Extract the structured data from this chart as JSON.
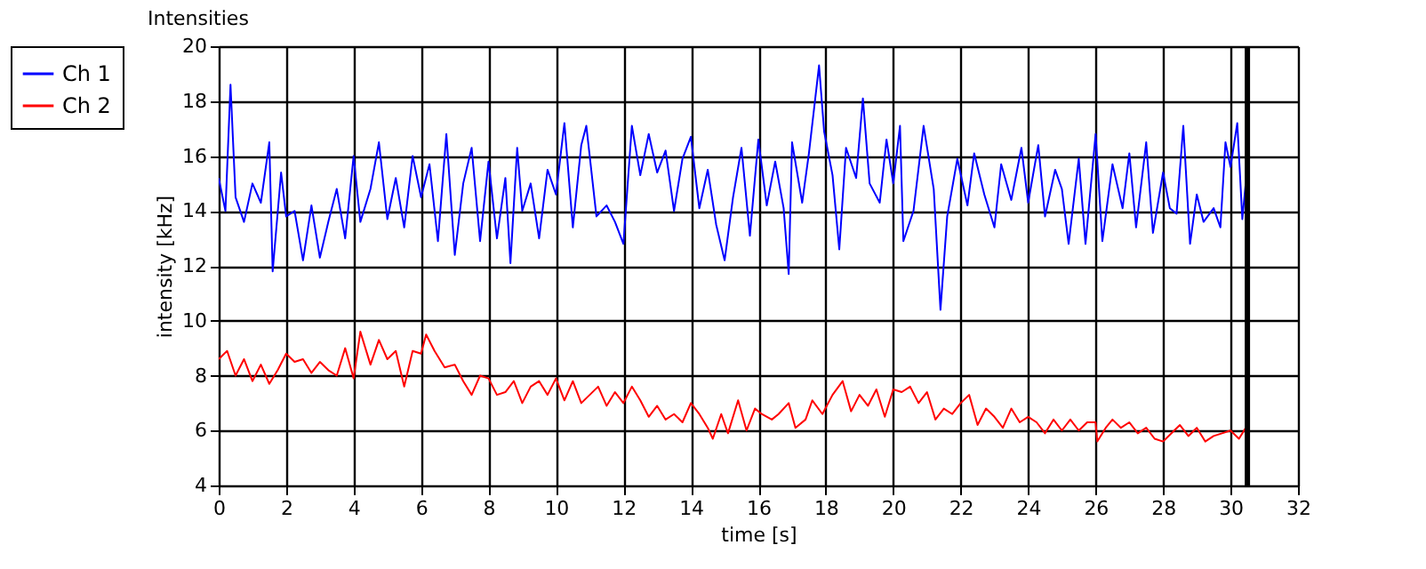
{
  "chart_data": {
    "type": "line",
    "title": "Intensities",
    "xlabel": "time [s]",
    "ylabel": "intensity [kHz]",
    "xlim": [
      0,
      32
    ],
    "xticks": [
      0,
      2,
      4,
      6,
      8,
      10,
      12,
      14,
      16,
      18,
      20,
      22,
      24,
      26,
      28,
      30,
      32
    ],
    "ylim": [
      4,
      20
    ],
    "yticks": [
      4,
      6,
      8,
      10,
      12,
      14,
      16,
      18,
      20
    ],
    "grid": true,
    "legend": "top left",
    "line_style": "solid",
    "marker": "none",
    "ref_lines": [
      {
        "axis": "x",
        "value": 30.5,
        "label": null,
        "color": "#000000"
      }
    ],
    "series": [
      {
        "name": "Ch 1",
        "color": "#0000ff",
        "x": [
          0.0,
          0.2,
          0.35,
          0.5,
          0.75,
          1.0,
          1.25,
          1.5,
          1.6,
          1.85,
          2.0,
          2.25,
          2.5,
          2.75,
          3.0,
          3.25,
          3.5,
          3.75,
          4.0,
          4.2,
          4.5,
          4.75,
          5.0,
          5.25,
          5.5,
          5.75,
          6.0,
          6.25,
          6.5,
          6.75,
          7.0,
          7.25,
          7.5,
          7.75,
          8.0,
          8.25,
          8.5,
          8.65,
          8.85,
          9.0,
          9.25,
          9.5,
          9.75,
          10.0,
          10.25,
          10.5,
          10.75,
          10.9,
          11.2,
          11.5,
          11.75,
          12.0,
          12.25,
          12.5,
          12.75,
          13.0,
          13.25,
          13.5,
          13.75,
          14.0,
          14.25,
          14.5,
          14.75,
          15.0,
          15.25,
          15.5,
          15.75,
          16.0,
          16.25,
          16.5,
          16.75,
          16.9,
          17.0,
          17.3,
          17.5,
          17.8,
          17.95,
          18.2,
          18.4,
          18.6,
          18.9,
          19.1,
          19.3,
          19.6,
          19.8,
          20.0,
          20.2,
          20.3,
          20.6,
          20.9,
          21.2,
          21.4,
          21.6,
          21.9,
          22.2,
          22.4,
          22.7,
          23.0,
          23.2,
          23.5,
          23.8,
          24.0,
          24.3,
          24.5,
          24.8,
          25.0,
          25.2,
          25.5,
          25.7,
          26.0,
          26.2,
          26.5,
          26.8,
          27.0,
          27.2,
          27.5,
          27.7,
          28.0,
          28.2,
          28.4,
          28.6,
          28.8,
          29.0,
          29.2,
          29.5,
          29.7,
          29.85,
          30.0,
          30.2,
          30.35,
          30.45
        ],
        "values": [
          15.2,
          14.0,
          18.6,
          14.5,
          13.6,
          15.0,
          14.3,
          16.5,
          11.8,
          15.4,
          13.8,
          14.0,
          12.2,
          14.2,
          12.3,
          13.6,
          14.8,
          13.0,
          16.0,
          13.6,
          14.8,
          16.5,
          13.7,
          15.2,
          13.4,
          16.0,
          14.5,
          15.7,
          12.9,
          16.8,
          12.4,
          15.0,
          16.3,
          12.9,
          15.8,
          13.0,
          15.2,
          12.1,
          16.3,
          14.0,
          15.0,
          13.0,
          15.5,
          14.6,
          17.2,
          13.4,
          16.4,
          17.1,
          13.8,
          14.2,
          13.6,
          12.8,
          17.1,
          15.3,
          16.8,
          15.4,
          16.2,
          14.0,
          15.9,
          16.7,
          14.1,
          15.5,
          13.5,
          12.2,
          14.5,
          16.3,
          13.1,
          16.6,
          14.2,
          15.8,
          14.1,
          11.7,
          16.5,
          14.3,
          16.1,
          19.3,
          16.9,
          15.3,
          12.6,
          16.3,
          15.2,
          18.1,
          15.0,
          14.3,
          16.6,
          15.0,
          17.1,
          12.9,
          14.0,
          17.1,
          14.8,
          10.4,
          13.8,
          15.9,
          14.2,
          16.1,
          14.6,
          13.4,
          15.7,
          14.4,
          16.3,
          14.3,
          16.4,
          13.8,
          15.5,
          14.8,
          12.8,
          15.9,
          12.8,
          16.8,
          12.9,
          15.7,
          14.1,
          16.1,
          13.4,
          16.5,
          13.2,
          15.4,
          14.1,
          13.9,
          17.1,
          12.8,
          14.6,
          13.6,
          14.1,
          13.4,
          16.5,
          15.6,
          17.2,
          13.7,
          15.0
        ]
      },
      {
        "name": "Ch 2",
        "color": "#ff0000",
        "x": [
          0.0,
          0.25,
          0.5,
          0.75,
          1.0,
          1.25,
          1.5,
          1.75,
          2.0,
          2.25,
          2.5,
          2.75,
          3.0,
          3.25,
          3.5,
          3.75,
          4.0,
          4.2,
          4.5,
          4.75,
          5.0,
          5.25,
          5.5,
          5.75,
          6.0,
          6.15,
          6.4,
          6.7,
          7.0,
          7.25,
          7.5,
          7.75,
          8.0,
          8.25,
          8.5,
          8.75,
          9.0,
          9.25,
          9.5,
          9.75,
          10.0,
          10.25,
          10.5,
          10.75,
          11.0,
          11.25,
          11.5,
          11.75,
          12.0,
          12.25,
          12.5,
          12.75,
          13.0,
          13.25,
          13.5,
          13.75,
          14.0,
          14.25,
          14.5,
          14.65,
          14.9,
          15.1,
          15.4,
          15.65,
          15.9,
          16.1,
          16.4,
          16.6,
          16.9,
          17.1,
          17.4,
          17.6,
          17.9,
          18.2,
          18.5,
          18.75,
          19.0,
          19.25,
          19.5,
          19.75,
          20.0,
          20.25,
          20.5,
          20.75,
          21.0,
          21.25,
          21.5,
          21.75,
          22.0,
          22.25,
          22.5,
          22.75,
          23.0,
          23.25,
          23.5,
          23.75,
          24.0,
          24.25,
          24.5,
          24.75,
          25.0,
          25.25,
          25.5,
          25.75,
          26.0,
          26.05,
          26.3,
          26.5,
          26.75,
          27.0,
          27.25,
          27.5,
          27.75,
          28.0,
          28.25,
          28.5,
          28.75,
          29.0,
          29.25,
          29.5,
          29.75,
          30.0,
          30.25,
          30.45
        ],
        "values": [
          8.6,
          8.9,
          8.0,
          8.6,
          7.8,
          8.4,
          7.7,
          8.2,
          8.8,
          8.5,
          8.6,
          8.1,
          8.5,
          8.2,
          8.0,
          9.0,
          7.9,
          9.6,
          8.4,
          9.3,
          8.6,
          8.9,
          7.6,
          8.9,
          8.8,
          9.5,
          8.9,
          8.3,
          8.4,
          7.8,
          7.3,
          8.0,
          7.9,
          7.3,
          7.4,
          7.8,
          7.0,
          7.6,
          7.8,
          7.3,
          7.9,
          7.1,
          7.8,
          7.0,
          7.3,
          7.6,
          6.9,
          7.4,
          7.0,
          7.6,
          7.1,
          6.5,
          6.9,
          6.4,
          6.6,
          6.3,
          7.0,
          6.6,
          6.1,
          5.7,
          6.6,
          5.9,
          7.1,
          6.0,
          6.8,
          6.6,
          6.4,
          6.6,
          7.0,
          6.1,
          6.4,
          7.1,
          6.6,
          7.3,
          7.8,
          6.7,
          7.3,
          6.9,
          7.5,
          6.5,
          7.5,
          7.4,
          7.6,
          7.0,
          7.4,
          6.4,
          6.8,
          6.6,
          7.0,
          7.3,
          6.2,
          6.8,
          6.5,
          6.1,
          6.8,
          6.3,
          6.5,
          6.3,
          5.9,
          6.4,
          6.0,
          6.4,
          6.0,
          6.3,
          6.3,
          5.6,
          6.1,
          6.4,
          6.1,
          6.3,
          5.9,
          6.1,
          5.7,
          5.6,
          5.9,
          6.2,
          5.8,
          6.1,
          5.6,
          5.8,
          5.9,
          6.0,
          5.7,
          6.1
        ]
      }
    ]
  }
}
